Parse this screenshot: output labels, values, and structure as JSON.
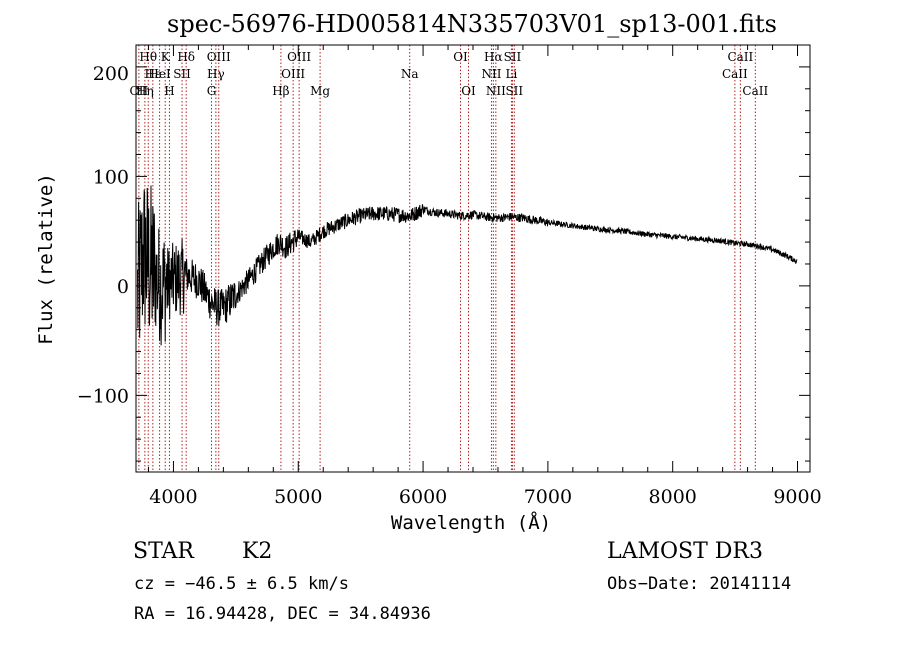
{
  "chart_data": {
    "type": "line",
    "title": "spec-56976-HD005814N335703V01_sp13-001.fits",
    "xlabel": "Wavelength (Å)",
    "ylabel": "Flux (relative)",
    "xlim": [
      3700,
      9100
    ],
    "ylim": [
      -170,
      220
    ],
    "x_ticks": [
      4000,
      5000,
      6000,
      7000,
      8000,
      9000
    ],
    "x_tick_labels": [
      "4000",
      "5000",
      "6000",
      "7000",
      "8000",
      "9000"
    ],
    "y_ticks": [
      -100,
      0,
      100,
      200
    ],
    "y_tick_labels": [
      "−100",
      "0",
      "100",
      "200"
    ],
    "y_top_label_partial": "200",
    "grid": false,
    "line_color": "#000000",
    "marker_color": "#b22222",
    "spectrum_anchors": {
      "x": [
        3700,
        3760,
        3800,
        3850,
        3900,
        4000,
        4100,
        4200,
        4300,
        4350,
        4400,
        4500,
        4600,
        4700,
        4800,
        4850,
        4900,
        5000,
        5100,
        5200,
        5300,
        5400,
        5500,
        5600,
        5700,
        5800,
        5900,
        6000,
        6100,
        6200,
        6300,
        6400,
        6500,
        6600,
        6700,
        6800,
        7000,
        7200,
        7400,
        7600,
        7800,
        8000,
        8200,
        8400,
        8500,
        8600,
        8700,
        8800,
        8900,
        9000
      ],
      "y": [
        -20,
        30,
        20,
        10,
        0,
        5,
        10,
        5,
        -15,
        -20,
        -20,
        -8,
        5,
        20,
        35,
        40,
        35,
        45,
        40,
        50,
        55,
        60,
        64,
        66,
        66,
        65,
        64,
        70,
        67,
        66,
        64,
        65,
        63,
        62,
        63,
        62,
        58,
        55,
        52,
        50,
        47,
        45,
        43,
        41,
        39,
        38,
        36,
        33,
        28,
        22
      ]
    },
    "lines": [
      {
        "label": "Hθ",
        "wavelength": 3798,
        "row": 1
      },
      {
        "label": "CII",
        "wavelength": 3723,
        "row": 3
      },
      {
        "label": "Hε",
        "wavelength": 3835,
        "row": 2
      },
      {
        "label": "HeI",
        "wavelength": 3889,
        "row": 2
      },
      {
        "label": "Hη",
        "wavelength": 3771,
        "row": 3
      },
      {
        "label": "K",
        "wavelength": 3934,
        "row": 1
      },
      {
        "label": "H",
        "wavelength": 3968,
        "row": 3
      },
      {
        "label": "SII",
        "wavelength": 4069,
        "row": 2
      },
      {
        "label": "Hδ",
        "wavelength": 4102,
        "row": 1
      },
      {
        "label": "G",
        "wavelength": 4305,
        "row": 3
      },
      {
        "label": "Hγ",
        "wavelength": 4340,
        "row": 2
      },
      {
        "label": "OIII",
        "wavelength": 4363,
        "row": 1
      },
      {
        "label": "Hβ",
        "wavelength": 4861,
        "row": 3
      },
      {
        "label": "OIII",
        "wavelength": 4959,
        "row": 2
      },
      {
        "label": "OIII",
        "wavelength": 5007,
        "row": 1
      },
      {
        "label": "Mg",
        "wavelength": 5175,
        "row": 3
      },
      {
        "label": "Na",
        "wavelength": 5893,
        "row": 2
      },
      {
        "label": "OI",
        "wavelength": 6300,
        "row": 1
      },
      {
        "label": "OI",
        "wavelength": 6364,
        "row": 3
      },
      {
        "label": "NII",
        "wavelength": 6548,
        "row": 2
      },
      {
        "label": "Hα",
        "wavelength": 6563,
        "row": 1
      },
      {
        "label": "NII",
        "wavelength": 6583,
        "row": 3
      },
      {
        "label": "Li",
        "wavelength": 6708,
        "row": 2
      },
      {
        "label": "SII",
        "wavelength": 6716,
        "row": 1
      },
      {
        "label": "SII",
        "wavelength": 6731,
        "row": 3
      },
      {
        "label": "CaII",
        "wavelength": 8498,
        "row": 2
      },
      {
        "label": "CaII",
        "wavelength": 8542,
        "row": 1
      },
      {
        "label": "CaII",
        "wavelength": 8662,
        "row": 3
      }
    ]
  },
  "info": {
    "object_class": "STAR",
    "subclass": "K2",
    "survey": "LAMOST DR3",
    "cz": "cz = −46.5 ± 6.5 km/s",
    "obs_date": "Obs−Date: 20141114",
    "coords": "RA =  16.94428, DEC =  34.84936"
  }
}
